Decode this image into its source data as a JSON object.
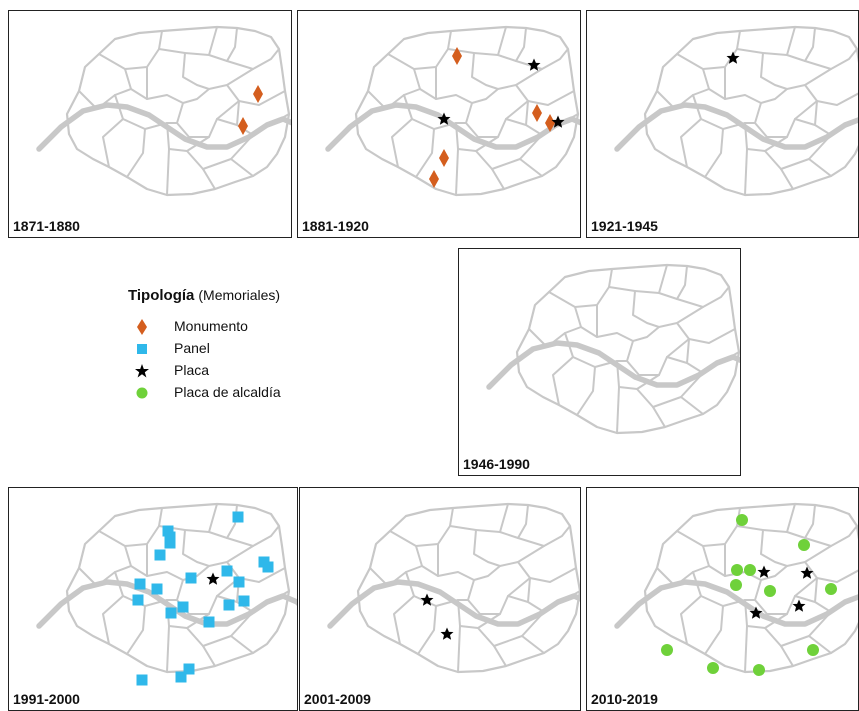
{
  "legend": {
    "title": "Tipología",
    "subtitle": "(Memoriales)",
    "items": [
      {
        "key": "monumento",
        "label": "Monumento",
        "symbol": "diamond",
        "color": "#d45e1e"
      },
      {
        "key": "panel",
        "label": "Panel",
        "symbol": "square",
        "color": "#2fb8ea"
      },
      {
        "key": "placa",
        "label": "Placa",
        "symbol": "star",
        "color": "#000000"
      },
      {
        "key": "alcaldia",
        "label": "Placa de alcaldía",
        "symbol": "circle",
        "color": "#6fd13a"
      }
    ]
  },
  "colors": {
    "district_lines": "#c8c8c8",
    "river": "#c8c8c8",
    "frame": "#222222"
  },
  "panels": [
    {
      "period": "1871-1880",
      "markers": [
        {
          "type": "monumento",
          "at": [
            257,
            93
          ]
        },
        {
          "type": "monumento",
          "at": [
            242,
            125
          ]
        }
      ]
    },
    {
      "period": "1881-1920",
      "markers": [
        {
          "type": "monumento",
          "at": [
            456,
            55
          ]
        },
        {
          "type": "placa",
          "at": [
            533,
            64
          ]
        },
        {
          "type": "placa",
          "at": [
            443,
            118
          ]
        },
        {
          "type": "monumento",
          "at": [
            536,
            112
          ]
        },
        {
          "type": "monumento",
          "at": [
            549,
            122
          ]
        },
        {
          "type": "placa",
          "at": [
            557,
            121
          ]
        },
        {
          "type": "monumento",
          "at": [
            443,
            157
          ]
        },
        {
          "type": "monumento",
          "at": [
            433,
            178
          ]
        }
      ]
    },
    {
      "period": "1921-1945",
      "markers": [
        {
          "type": "placa",
          "at": [
            732,
            57
          ]
        }
      ]
    },
    {
      "period": "1946-1990",
      "markers": []
    },
    {
      "period": "1991-2000",
      "markers": [
        {
          "type": "panel",
          "at": [
            237,
            516
          ]
        },
        {
          "type": "panel",
          "at": [
            167,
            530
          ]
        },
        {
          "type": "panel",
          "at": [
            169,
            536
          ]
        },
        {
          "type": "panel",
          "at": [
            169,
            542
          ]
        },
        {
          "type": "panel",
          "at": [
            159,
            554
          ]
        },
        {
          "type": "panel",
          "at": [
            263,
            561
          ]
        },
        {
          "type": "panel",
          "at": [
            267,
            566
          ]
        },
        {
          "type": "panel",
          "at": [
            226,
            570
          ]
        },
        {
          "type": "panel",
          "at": [
            190,
            577
          ]
        },
        {
          "type": "placa",
          "at": [
            212,
            578
          ]
        },
        {
          "type": "panel",
          "at": [
            238,
            581
          ]
        },
        {
          "type": "panel",
          "at": [
            139,
            583
          ]
        },
        {
          "type": "panel",
          "at": [
            156,
            588
          ]
        },
        {
          "type": "panel",
          "at": [
            137,
            599
          ]
        },
        {
          "type": "panel",
          "at": [
            243,
            600
          ]
        },
        {
          "type": "panel",
          "at": [
            228,
            604
          ]
        },
        {
          "type": "panel",
          "at": [
            182,
            606
          ]
        },
        {
          "type": "panel",
          "at": [
            170,
            612
          ]
        },
        {
          "type": "panel",
          "at": [
            208,
            621
          ]
        },
        {
          "type": "panel",
          "at": [
            188,
            668
          ]
        },
        {
          "type": "panel",
          "at": [
            180,
            676
          ]
        },
        {
          "type": "panel",
          "at": [
            141,
            679
          ]
        }
      ]
    },
    {
      "period": "2001-2009",
      "markers": [
        {
          "type": "placa",
          "at": [
            426,
            599
          ]
        },
        {
          "type": "placa",
          "at": [
            446,
            633
          ]
        }
      ]
    },
    {
      "period": "2010-2019",
      "markers": [
        {
          "type": "alcaldia",
          "at": [
            741,
            519
          ]
        },
        {
          "type": "alcaldia",
          "at": [
            803,
            544
          ]
        },
        {
          "type": "alcaldia",
          "at": [
            736,
            569
          ]
        },
        {
          "type": "alcaldia",
          "at": [
            749,
            569
          ]
        },
        {
          "type": "placa",
          "at": [
            763,
            571
          ]
        },
        {
          "type": "placa",
          "at": [
            806,
            572
          ]
        },
        {
          "type": "alcaldia",
          "at": [
            735,
            584
          ]
        },
        {
          "type": "alcaldia",
          "at": [
            769,
            590
          ]
        },
        {
          "type": "alcaldia",
          "at": [
            830,
            588
          ]
        },
        {
          "type": "placa",
          "at": [
            798,
            605
          ]
        },
        {
          "type": "placa",
          "at": [
            755,
            612
          ]
        },
        {
          "type": "alcaldia",
          "at": [
            812,
            649
          ]
        },
        {
          "type": "alcaldia",
          "at": [
            666,
            649
          ]
        },
        {
          "type": "alcaldia",
          "at": [
            712,
            667
          ]
        },
        {
          "type": "alcaldia",
          "at": [
            758,
            669
          ]
        }
      ]
    }
  ]
}
